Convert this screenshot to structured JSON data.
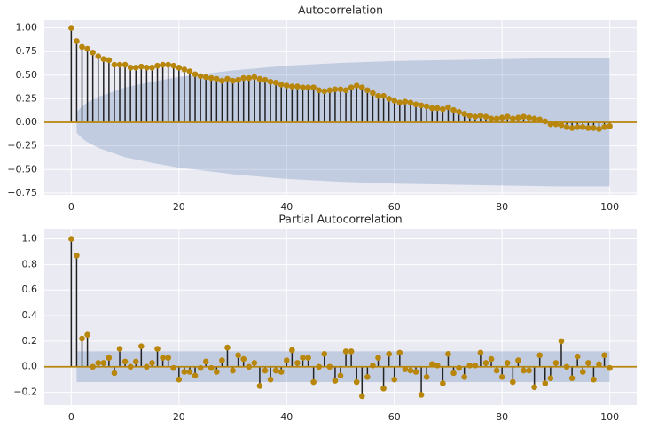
{
  "chart_data": [
    {
      "type": "stem",
      "title": "Autocorrelation",
      "x": [
        0,
        1,
        2,
        3,
        4,
        5,
        6,
        7,
        8,
        9,
        10,
        11,
        12,
        13,
        14,
        15,
        16,
        17,
        18,
        19,
        20,
        21,
        22,
        23,
        24,
        25,
        26,
        27,
        28,
        29,
        30,
        31,
        32,
        33,
        34,
        35,
        36,
        37,
        38,
        39,
        40,
        41,
        42,
        43,
        44,
        45,
        46,
        47,
        48,
        49,
        50,
        51,
        52,
        53,
        54,
        55,
        56,
        57,
        58,
        59,
        60,
        61,
        62,
        63,
        64,
        65,
        66,
        67,
        68,
        69,
        70,
        71,
        72,
        73,
        74,
        75,
        76,
        77,
        78,
        79,
        80,
        81,
        82,
        83,
        84,
        85,
        86,
        87,
        88,
        89,
        90,
        91,
        92,
        93,
        94,
        95,
        96,
        97,
        98,
        99,
        100
      ],
      "values": [
        1.0,
        0.86,
        0.8,
        0.78,
        0.74,
        0.7,
        0.67,
        0.66,
        0.61,
        0.61,
        0.61,
        0.58,
        0.58,
        0.59,
        0.58,
        0.58,
        0.6,
        0.61,
        0.61,
        0.6,
        0.58,
        0.56,
        0.54,
        0.51,
        0.49,
        0.48,
        0.47,
        0.46,
        0.44,
        0.46,
        0.44,
        0.45,
        0.47,
        0.47,
        0.48,
        0.46,
        0.45,
        0.43,
        0.42,
        0.4,
        0.39,
        0.38,
        0.38,
        0.37,
        0.37,
        0.37,
        0.34,
        0.33,
        0.34,
        0.35,
        0.35,
        0.34,
        0.37,
        0.39,
        0.37,
        0.34,
        0.31,
        0.28,
        0.28,
        0.25,
        0.23,
        0.21,
        0.22,
        0.21,
        0.19,
        0.18,
        0.17,
        0.15,
        0.15,
        0.14,
        0.16,
        0.13,
        0.11,
        0.09,
        0.07,
        0.06,
        0.07,
        0.06,
        0.04,
        0.04,
        0.05,
        0.06,
        0.04,
        0.05,
        0.06,
        0.05,
        0.04,
        0.03,
        0.01,
        -0.02,
        -0.02,
        -0.03,
        -0.05,
        -0.06,
        -0.05,
        -0.05,
        -0.06,
        -0.06,
        -0.07,
        -0.05,
        -0.04
      ],
      "marker_color": "#b8860b",
      "stem_color": "#222222",
      "baseline_color": "#b8860b",
      "band": {
        "x": [
          1,
          2,
          3,
          5,
          10,
          15,
          20,
          30,
          40,
          50,
          60,
          70,
          80,
          90,
          100
        ],
        "upper": [
          0.11,
          0.17,
          0.21,
          0.27,
          0.37,
          0.43,
          0.48,
          0.55,
          0.6,
          0.63,
          0.65,
          0.66,
          0.67,
          0.68,
          0.68
        ],
        "lower": [
          -0.11,
          -0.17,
          -0.21,
          -0.27,
          -0.37,
          -0.43,
          -0.48,
          -0.55,
          -0.6,
          -0.63,
          -0.65,
          -0.66,
          -0.67,
          -0.68,
          -0.68
        ],
        "color": "#4c72b0"
      },
      "xlim": [
        -5,
        105
      ],
      "ylim": [
        -0.77,
        1.09
      ],
      "xticks": [
        0,
        20,
        40,
        60,
        80,
        100
      ],
      "yticks": [
        {
          "value": 1,
          "label": "1.00"
        },
        {
          "value": 0.75,
          "label": "0.75"
        },
        {
          "value": 0.5,
          "label": "0.50"
        },
        {
          "value": 0.25,
          "label": "0.25"
        },
        {
          "value": 0,
          "label": "0.00"
        },
        {
          "value": -0.25,
          "label": "−0.25"
        },
        {
          "value": -0.5,
          "label": "−0.50"
        },
        {
          "value": -0.75,
          "label": "−0.75"
        }
      ],
      "grid": true
    },
    {
      "type": "stem",
      "title": "Partial Autocorrelation",
      "x": [
        0,
        1,
        2,
        3,
        4,
        5,
        6,
        7,
        8,
        9,
        10,
        11,
        12,
        13,
        14,
        15,
        16,
        17,
        18,
        19,
        20,
        21,
        22,
        23,
        24,
        25,
        26,
        27,
        28,
        29,
        30,
        31,
        32,
        33,
        34,
        35,
        36,
        37,
        38,
        39,
        40,
        41,
        42,
        43,
        44,
        45,
        46,
        47,
        48,
        49,
        50,
        51,
        52,
        53,
        54,
        55,
        56,
        57,
        58,
        59,
        60,
        61,
        62,
        63,
        64,
        65,
        66,
        67,
        68,
        69,
        70,
        71,
        72,
        73,
        74,
        75,
        76,
        77,
        78,
        79,
        80,
        81,
        82,
        83,
        84,
        85,
        86,
        87,
        88,
        89,
        90,
        91,
        92,
        93,
        94,
        95,
        96,
        97,
        98,
        99,
        100
      ],
      "values": [
        1.0,
        0.87,
        0.22,
        0.25,
        0.0,
        0.03,
        0.03,
        0.07,
        -0.05,
        0.14,
        0.04,
        0.0,
        0.04,
        0.16,
        0.0,
        0.03,
        0.14,
        0.07,
        0.07,
        -0.01,
        -0.1,
        -0.04,
        -0.04,
        -0.07,
        -0.01,
        0.04,
        -0.01,
        -0.04,
        0.05,
        0.15,
        -0.03,
        0.09,
        0.06,
        0.0,
        0.03,
        -0.15,
        -0.03,
        -0.1,
        -0.03,
        -0.04,
        0.05,
        0.13,
        0.03,
        0.07,
        0.07,
        -0.12,
        0.0,
        0.1,
        0.0,
        -0.11,
        -0.07,
        0.12,
        0.12,
        -0.12,
        -0.23,
        -0.08,
        0.01,
        0.07,
        -0.17,
        0.1,
        -0.1,
        0.11,
        -0.02,
        -0.03,
        -0.04,
        -0.22,
        -0.08,
        0.02,
        0.01,
        -0.13,
        0.1,
        -0.05,
        -0.01,
        -0.08,
        0.01,
        0.01,
        0.11,
        0.03,
        0.06,
        -0.03,
        -0.08,
        0.03,
        -0.12,
        0.05,
        -0.03,
        -0.03,
        -0.16,
        0.09,
        -0.13,
        -0.09,
        0.03,
        0.2,
        0.0,
        -0.09,
        0.08,
        -0.04,
        0.03,
        -0.1,
        0.02,
        0.09,
        -0.01
      ],
      "marker_color": "#b8860b",
      "stem_color": "#222222",
      "baseline_color": "#b8860b",
      "band": {
        "x": [
          1,
          100
        ],
        "upper": [
          0.12,
          0.12
        ],
        "lower": [
          -0.12,
          -0.12
        ],
        "color": "#4c72b0"
      },
      "xlim": [
        -5,
        105
      ],
      "ylim": [
        -0.3,
        1.08
      ],
      "xticks": [
        0,
        20,
        40,
        60,
        80,
        100
      ],
      "yticks": [
        {
          "value": 1,
          "label": "1.0"
        },
        {
          "value": 0.8,
          "label": "0.8"
        },
        {
          "value": 0.6,
          "label": "0.6"
        },
        {
          "value": 0.4,
          "label": "0.4"
        },
        {
          "value": 0.2,
          "label": "0.2"
        },
        {
          "value": 0,
          "label": "0.0"
        },
        {
          "value": -0.2,
          "label": "−0.2"
        }
      ],
      "grid": true
    }
  ]
}
